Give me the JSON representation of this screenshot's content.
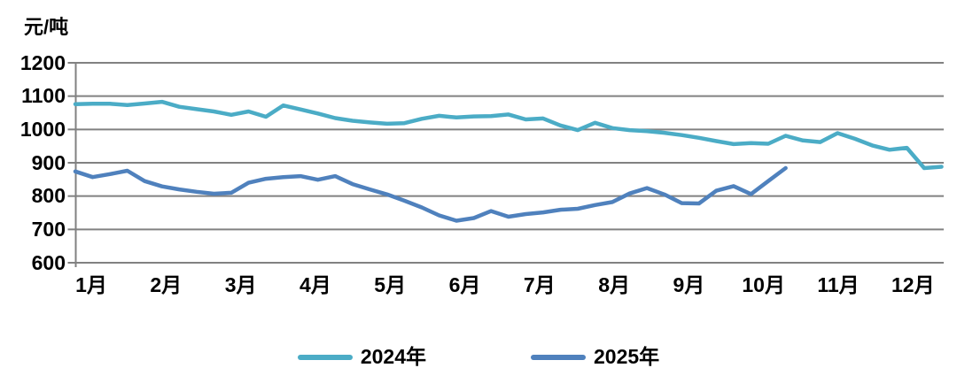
{
  "unit_label": "元/吨",
  "colors": {
    "series_2024": "#4BACC6",
    "series_2025": "#4F81BD",
    "gridline": "#818181",
    "text": "#000000",
    "background": "#FFFFFF"
  },
  "legend": {
    "items": [
      {
        "label": "2024年",
        "color": "#4BACC6"
      },
      {
        "label": "2025年",
        "color": "#4F81BD"
      }
    ]
  },
  "chart_data": {
    "type": "line",
    "title": "",
    "ylabel": "元/吨",
    "xlabel": "",
    "ylim": [
      600,
      1200
    ],
    "ytick_interval": 100,
    "yticks": [
      1200,
      1100,
      1000,
      900,
      800,
      700,
      600
    ],
    "xticks": [
      "1月",
      "2月",
      "3月",
      "4月",
      "5月",
      "6月",
      "7月",
      "8月",
      "9月",
      "10月",
      "11月",
      "12月"
    ],
    "x_unit": "week (approx. weekly observations across the year)",
    "grid": "horizontal",
    "legend_position": "bottom",
    "series": [
      {
        "name": "2024年",
        "color": "#4BACC6",
        "values": [
          1076,
          1077,
          1077,
          1073,
          1078,
          1083,
          1068,
          1061,
          1054,
          1044,
          1054,
          1038,
          1072,
          1060,
          1048,
          1034,
          1026,
          1021,
          1017,
          1019,
          1032,
          1041,
          1036,
          1039,
          1040,
          1045,
          1030,
          1033,
          1012,
          998,
          1020,
          1004,
          998,
          995,
          990,
          983,
          975,
          965,
          956,
          959,
          957,
          981,
          967,
          962,
          989,
          972,
          952,
          939,
          945,
          884,
          888
        ]
      },
      {
        "name": "2025年",
        "color": "#4F81BD",
        "values": [
          874,
          857,
          866,
          876,
          845,
          829,
          820,
          813,
          807,
          810,
          840,
          852,
          857,
          860,
          849,
          860,
          836,
          820,
          805,
          786,
          766,
          742,
          726,
          734,
          755,
          738,
          746,
          751,
          759,
          762,
          773,
          782,
          808,
          824,
          805,
          779,
          778,
          816,
          830,
          806,
          845,
          884
        ]
      }
    ]
  }
}
